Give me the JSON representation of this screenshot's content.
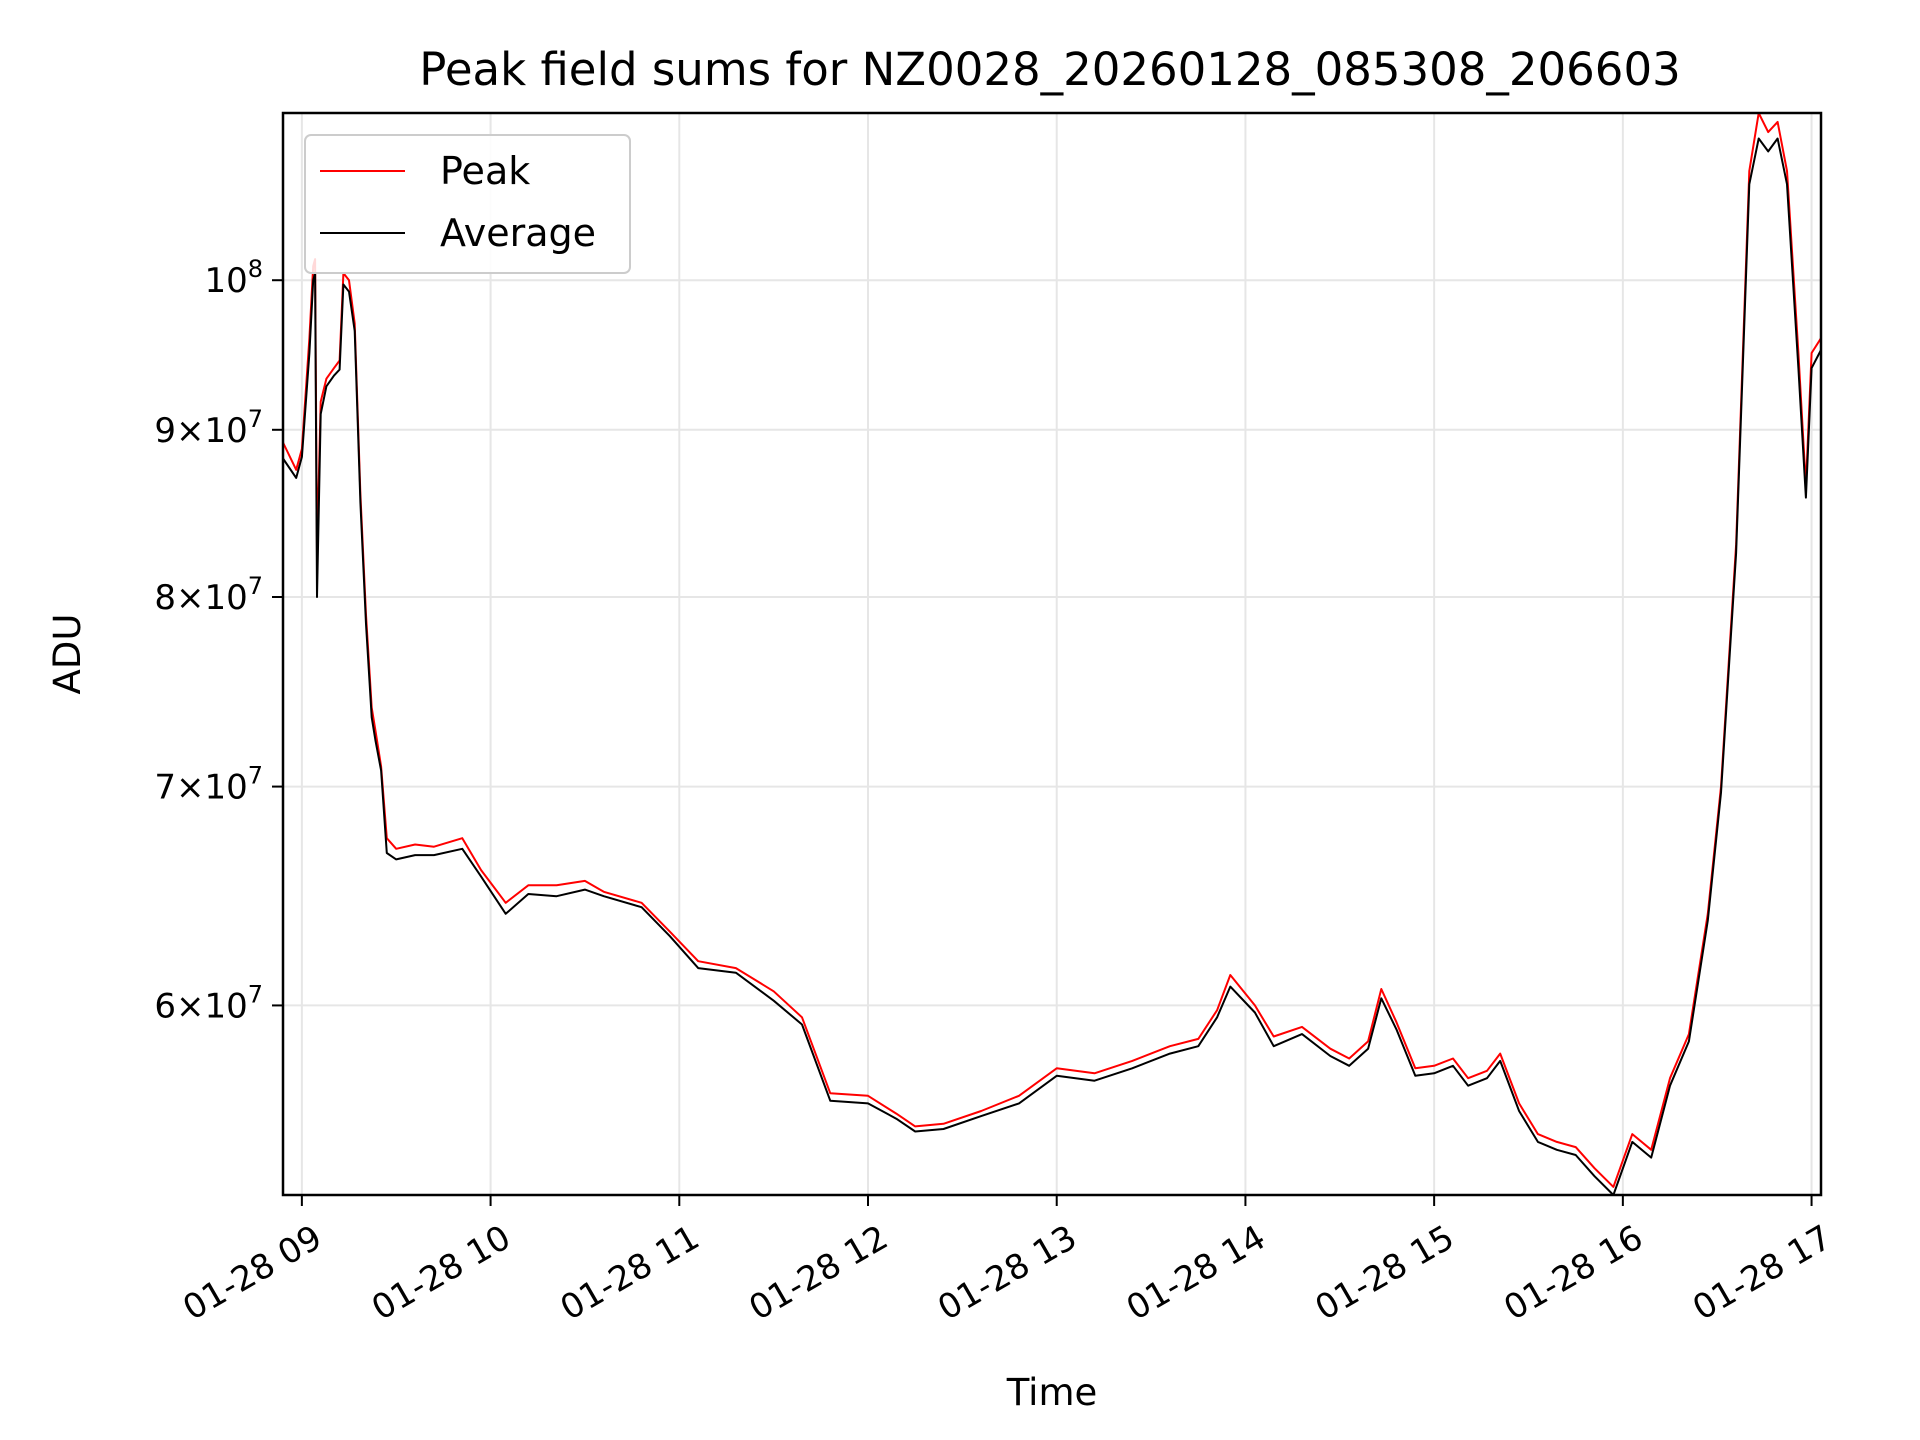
{
  "chart_data": {
    "type": "line",
    "title": "Peak field sums for NZ0028_20260128_085308_206603",
    "xlabel": "Time",
    "ylabel": "ADU",
    "yscale": "log",
    "ylim": [
      52500000,
      112500000
    ],
    "xlim_hours": [
      8.9,
      17.05
    ],
    "grid": true,
    "legend_position": "upper left",
    "x_ticks": [
      {
        "hour": 9,
        "label": "01-28 09"
      },
      {
        "hour": 10,
        "label": "01-28 10"
      },
      {
        "hour": 11,
        "label": "01-28 11"
      },
      {
        "hour": 12,
        "label": "01-28 12"
      },
      {
        "hour": 13,
        "label": "01-28 13"
      },
      {
        "hour": 14,
        "label": "01-28 14"
      },
      {
        "hour": 15,
        "label": "01-28 15"
      },
      {
        "hour": 16,
        "label": "01-28 16"
      },
      {
        "hour": 17,
        "label": "01-28 17"
      }
    ],
    "y_ticks": [
      {
        "value": 60000000,
        "mantissa": "6",
        "exp": "7"
      },
      {
        "value": 70000000,
        "mantissa": "7",
        "exp": "7"
      },
      {
        "value": 80000000,
        "mantissa": "8",
        "exp": "7"
      },
      {
        "value": 90000000,
        "mantissa": "9",
        "exp": "7"
      },
      {
        "value": 100000000,
        "mantissa": "",
        "exp": "8"
      }
    ],
    "series": [
      {
        "name": "Peak",
        "color": "#ff0000",
        "points": [
          [
            8.9,
            89200000
          ],
          [
            8.97,
            87500000
          ],
          [
            9.0,
            88800000
          ],
          [
            9.04,
            96000000
          ],
          [
            9.06,
            101000000
          ],
          [
            9.07,
            101500000
          ],
          [
            9.08,
            82500000
          ],
          [
            9.1,
            91800000
          ],
          [
            9.13,
            93300000
          ],
          [
            9.17,
            94000000
          ],
          [
            9.2,
            94500000
          ],
          [
            9.22,
            100500000
          ],
          [
            9.25,
            100000000
          ],
          [
            9.28,
            97000000
          ],
          [
            9.31,
            86000000
          ],
          [
            9.34,
            79000000
          ],
          [
            9.37,
            74000000
          ],
          [
            9.39,
            72800000
          ],
          [
            9.42,
            71000000
          ],
          [
            9.45,
            67500000
          ],
          [
            9.5,
            67000000
          ],
          [
            9.6,
            67200000
          ],
          [
            9.7,
            67100000
          ],
          [
            9.85,
            67500000
          ],
          [
            9.95,
            66000000
          ],
          [
            10.08,
            64500000
          ],
          [
            10.2,
            65300000
          ],
          [
            10.35,
            65300000
          ],
          [
            10.5,
            65500000
          ],
          [
            10.6,
            65000000
          ],
          [
            10.8,
            64500000
          ],
          [
            10.95,
            63200000
          ],
          [
            11.1,
            61900000
          ],
          [
            11.3,
            61600000
          ],
          [
            11.5,
            60600000
          ],
          [
            11.65,
            59500000
          ],
          [
            11.8,
            56400000
          ],
          [
            12.0,
            56300000
          ],
          [
            12.15,
            55600000
          ],
          [
            12.25,
            55100000
          ],
          [
            12.4,
            55200000
          ],
          [
            12.6,
            55700000
          ],
          [
            12.8,
            56300000
          ],
          [
            13.0,
            57400000
          ],
          [
            13.2,
            57200000
          ],
          [
            13.4,
            57700000
          ],
          [
            13.6,
            58300000
          ],
          [
            13.75,
            58600000
          ],
          [
            13.85,
            59800000
          ],
          [
            13.92,
            61300000
          ],
          [
            14.05,
            60000000
          ],
          [
            14.15,
            58700000
          ],
          [
            14.3,
            59100000
          ],
          [
            14.45,
            58200000
          ],
          [
            14.55,
            57800000
          ],
          [
            14.65,
            58500000
          ],
          [
            14.72,
            60700000
          ],
          [
            14.8,
            59300000
          ],
          [
            14.9,
            57400000
          ],
          [
            15.0,
            57500000
          ],
          [
            15.1,
            57800000
          ],
          [
            15.18,
            57000000
          ],
          [
            15.28,
            57300000
          ],
          [
            15.35,
            58000000
          ],
          [
            15.45,
            56000000
          ],
          [
            15.55,
            54800000
          ],
          [
            15.65,
            54500000
          ],
          [
            15.75,
            54300000
          ],
          [
            15.85,
            53500000
          ],
          [
            15.95,
            52800000
          ],
          [
            16.05,
            54800000
          ],
          [
            16.15,
            54200000
          ],
          [
            16.25,
            57000000
          ],
          [
            16.35,
            58800000
          ],
          [
            16.45,
            64000000
          ],
          [
            16.52,
            70000000
          ],
          [
            16.6,
            83000000
          ],
          [
            16.67,
            108000000
          ],
          [
            16.72,
            112500000
          ],
          [
            16.77,
            111000000
          ],
          [
            16.82,
            111800000
          ],
          [
            16.87,
            108000000
          ],
          [
            16.93,
            95000000
          ],
          [
            16.97,
            86500000
          ],
          [
            17.0,
            95000000
          ],
          [
            17.05,
            96000000
          ]
        ]
      },
      {
        "name": "Average",
        "color": "#000000",
        "points": [
          [
            8.9,
            88200000
          ],
          [
            8.97,
            87000000
          ],
          [
            9.0,
            88300000
          ],
          [
            9.04,
            95000000
          ],
          [
            9.06,
            100000000
          ],
          [
            9.07,
            100500000
          ],
          [
            9.08,
            80000000
          ],
          [
            9.1,
            91000000
          ],
          [
            9.13,
            92800000
          ],
          [
            9.17,
            93500000
          ],
          [
            9.2,
            93900000
          ],
          [
            9.22,
            99700000
          ],
          [
            9.25,
            99200000
          ],
          [
            9.28,
            96500000
          ],
          [
            9.31,
            85500000
          ],
          [
            9.34,
            78500000
          ],
          [
            9.37,
            73500000
          ],
          [
            9.39,
            72300000
          ],
          [
            9.42,
            70800000
          ],
          [
            9.45,
            66800000
          ],
          [
            9.5,
            66500000
          ],
          [
            9.6,
            66700000
          ],
          [
            9.7,
            66700000
          ],
          [
            9.85,
            67000000
          ],
          [
            9.95,
            65700000
          ],
          [
            10.08,
            64000000
          ],
          [
            10.2,
            64900000
          ],
          [
            10.35,
            64800000
          ],
          [
            10.5,
            65100000
          ],
          [
            10.6,
            64800000
          ],
          [
            10.8,
            64300000
          ],
          [
            10.95,
            63000000
          ],
          [
            11.1,
            61600000
          ],
          [
            11.3,
            61400000
          ],
          [
            11.5,
            60200000
          ],
          [
            11.65,
            59200000
          ],
          [
            11.8,
            56100000
          ],
          [
            12.0,
            56000000
          ],
          [
            12.15,
            55400000
          ],
          [
            12.25,
            54900000
          ],
          [
            12.4,
            55000000
          ],
          [
            12.6,
            55500000
          ],
          [
            12.8,
            56000000
          ],
          [
            13.0,
            57100000
          ],
          [
            13.2,
            56900000
          ],
          [
            13.4,
            57400000
          ],
          [
            13.6,
            58000000
          ],
          [
            13.75,
            58300000
          ],
          [
            13.85,
            59500000
          ],
          [
            13.92,
            60800000
          ],
          [
            14.05,
            59700000
          ],
          [
            14.15,
            58300000
          ],
          [
            14.3,
            58800000
          ],
          [
            14.45,
            57900000
          ],
          [
            14.55,
            57500000
          ],
          [
            14.65,
            58200000
          ],
          [
            14.72,
            60300000
          ],
          [
            14.8,
            59000000
          ],
          [
            14.9,
            57100000
          ],
          [
            15.0,
            57200000
          ],
          [
            15.1,
            57500000
          ],
          [
            15.18,
            56700000
          ],
          [
            15.28,
            57000000
          ],
          [
            15.35,
            57700000
          ],
          [
            15.45,
            55700000
          ],
          [
            15.55,
            54500000
          ],
          [
            15.65,
            54200000
          ],
          [
            15.75,
            54000000
          ],
          [
            15.85,
            53200000
          ],
          [
            15.95,
            52500000
          ],
          [
            16.05,
            54500000
          ],
          [
            16.15,
            53900000
          ],
          [
            16.25,
            56700000
          ],
          [
            16.35,
            58500000
          ],
          [
            16.45,
            63700000
          ],
          [
            16.52,
            69700000
          ],
          [
            16.6,
            82500000
          ],
          [
            16.67,
            107000000
          ],
          [
            16.72,
            110500000
          ],
          [
            16.77,
            109500000
          ],
          [
            16.82,
            110500000
          ],
          [
            16.87,
            107000000
          ],
          [
            16.93,
            94000000
          ],
          [
            16.97,
            85800000
          ],
          [
            17.0,
            94000000
          ],
          [
            17.05,
            95200000
          ]
        ]
      }
    ]
  }
}
